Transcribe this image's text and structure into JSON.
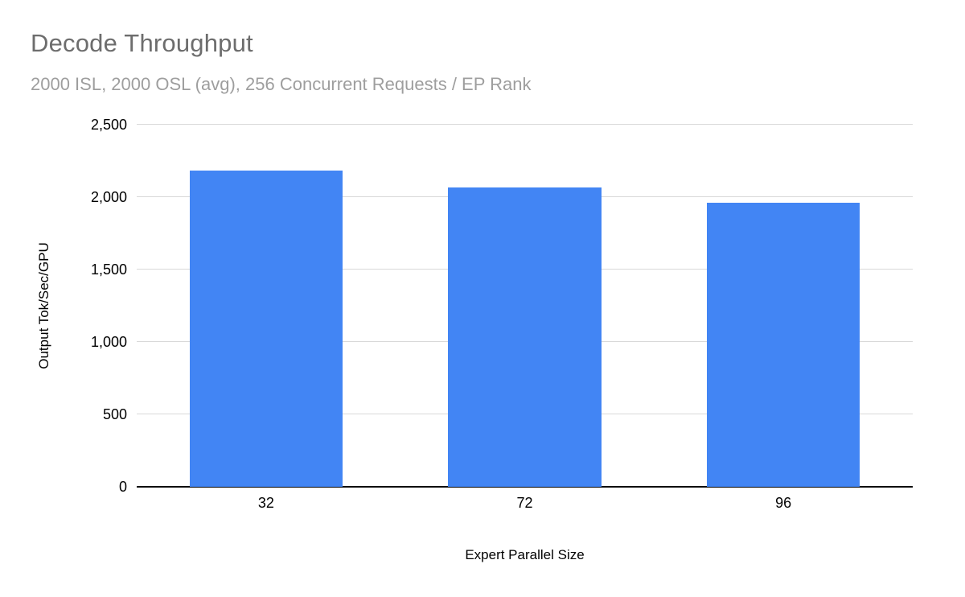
{
  "chart_data": {
    "type": "bar",
    "title": "Decode Throughput",
    "subtitle": "2000 ISL, 2000 OSL (avg), 256 Concurrent Requests / EP Rank",
    "xlabel": "Expert Parallel Size",
    "ylabel": "Output Tok/Sec/GPU",
    "categories": [
      "32",
      "72",
      "96"
    ],
    "values": [
      2183,
      2067,
      1961
    ],
    "ylim": [
      0,
      2500
    ],
    "yticks": [
      {
        "value": 0,
        "label": "0"
      },
      {
        "value": 500,
        "label": "500"
      },
      {
        "value": 1000,
        "label": "1,000"
      },
      {
        "value": 1500,
        "label": "1,500"
      },
      {
        "value": 2000,
        "label": "2,000"
      },
      {
        "value": 2500,
        "label": "2,500"
      }
    ],
    "grid": true,
    "legend_position": "none",
    "colors": {
      "bar": "#4285f4",
      "gridline": "#d9d9d9",
      "axis_line": "#000000",
      "title_text": "#6d6d6d",
      "subtitle_text": "#9e9e9e",
      "tick_text": "#000000"
    }
  }
}
